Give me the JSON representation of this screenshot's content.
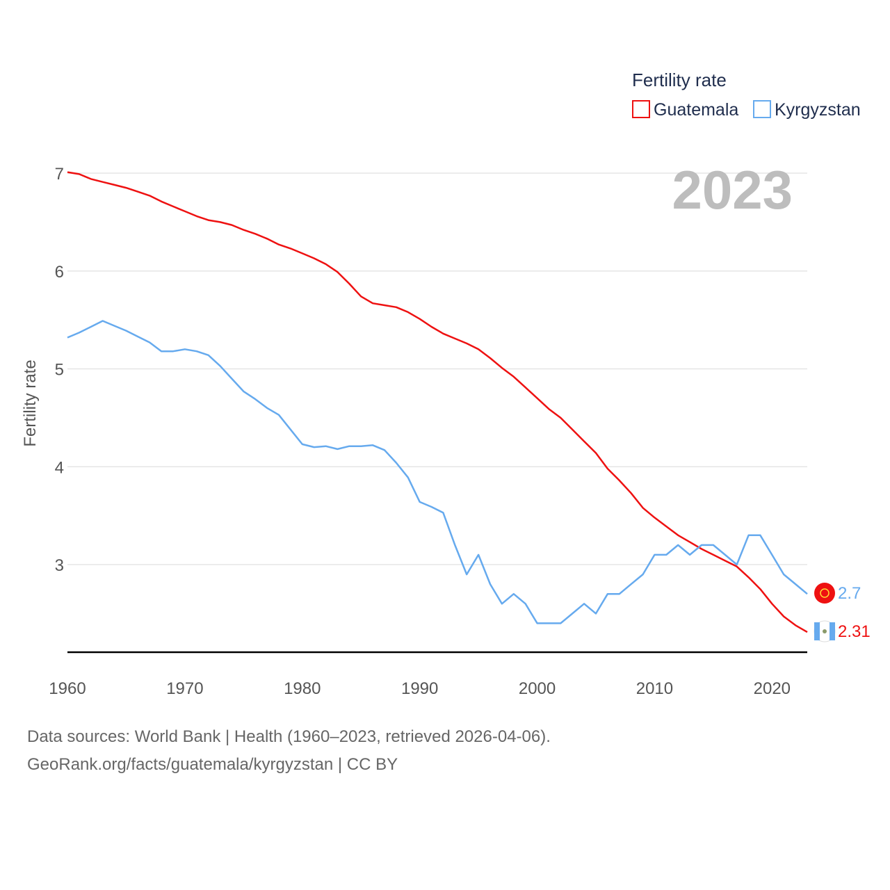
{
  "legend": {
    "title": "Fertility rate",
    "items": [
      "Guatemala",
      "Kyrgyzstan"
    ]
  },
  "watermark_year": "2023",
  "colors": {
    "Guatemala": "#ee1111",
    "Kyrgyzstan": "#66aaee",
    "grid": "#e6e6e6",
    "axis": "#000000"
  },
  "end_labels": {
    "Guatemala": "2.31",
    "Kyrgyzstan": "2.7"
  },
  "footer": {
    "line1": "Data sources: World Bank | Health (1960–2023, retrieved 2026-04-06).",
    "line2": "GeoRank.org/facts/guatemala/kyrgyzstan | CC BY"
  },
  "chart_data": {
    "type": "line",
    "title": "Fertility rate",
    "xlabel": "",
    "ylabel": "Fertility rate",
    "xlim": [
      1960,
      2023
    ],
    "ylim": [
      2.1,
      7.0
    ],
    "xticks": [
      1960,
      1970,
      1980,
      1990,
      2000,
      2010,
      2020
    ],
    "yticks": [
      3,
      4,
      5,
      6,
      7
    ],
    "grid": true,
    "legend_position": "top-right",
    "x": [
      1960,
      1961,
      1962,
      1963,
      1964,
      1965,
      1966,
      1967,
      1968,
      1969,
      1970,
      1971,
      1972,
      1973,
      1974,
      1975,
      1976,
      1977,
      1978,
      1979,
      1980,
      1981,
      1982,
      1983,
      1984,
      1985,
      1986,
      1987,
      1988,
      1989,
      1990,
      1991,
      1992,
      1993,
      1994,
      1995,
      1996,
      1997,
      1998,
      1999,
      2000,
      2001,
      2002,
      2003,
      2004,
      2005,
      2006,
      2007,
      2008,
      2009,
      2010,
      2011,
      2012,
      2013,
      2014,
      2015,
      2016,
      2017,
      2018,
      2019,
      2020,
      2021,
      2022,
      2023
    ],
    "series": [
      {
        "name": "Guatemala",
        "values": [
          7.01,
          6.99,
          6.94,
          6.91,
          6.88,
          6.85,
          6.81,
          6.77,
          6.71,
          6.66,
          6.61,
          6.56,
          6.52,
          6.5,
          6.47,
          6.42,
          6.38,
          6.33,
          6.27,
          6.23,
          6.18,
          6.13,
          6.07,
          5.99,
          5.87,
          5.74,
          5.67,
          5.65,
          5.63,
          5.58,
          5.51,
          5.43,
          5.36,
          5.31,
          5.26,
          5.2,
          5.11,
          5.01,
          4.92,
          4.81,
          4.7,
          4.59,
          4.5,
          4.38,
          4.26,
          4.14,
          3.98,
          3.86,
          3.73,
          3.58,
          3.48,
          3.39,
          3.3,
          3.23,
          3.16,
          3.1,
          3.04,
          2.98,
          2.87,
          2.75,
          2.6,
          2.47,
          2.38,
          2.31
        ]
      },
      {
        "name": "Kyrgyzstan",
        "values": [
          5.32,
          5.37,
          5.43,
          5.49,
          5.44,
          5.39,
          5.33,
          5.27,
          5.18,
          5.18,
          5.2,
          5.18,
          5.14,
          5.03,
          4.9,
          4.77,
          4.69,
          4.6,
          4.53,
          4.38,
          4.23,
          4.2,
          4.21,
          4.18,
          4.21,
          4.21,
          4.22,
          4.17,
          4.04,
          3.89,
          3.64,
          3.59,
          3.53,
          3.2,
          2.9,
          3.1,
          2.8,
          2.6,
          2.7,
          2.6,
          2.4,
          2.4,
          2.4,
          2.5,
          2.6,
          2.5,
          2.7,
          2.7,
          2.8,
          2.9,
          3.1,
          3.1,
          3.2,
          3.1,
          3.2,
          3.2,
          3.1,
          3.0,
          3.3,
          3.3,
          3.1,
          2.9,
          2.8,
          2.7
        ]
      }
    ]
  }
}
